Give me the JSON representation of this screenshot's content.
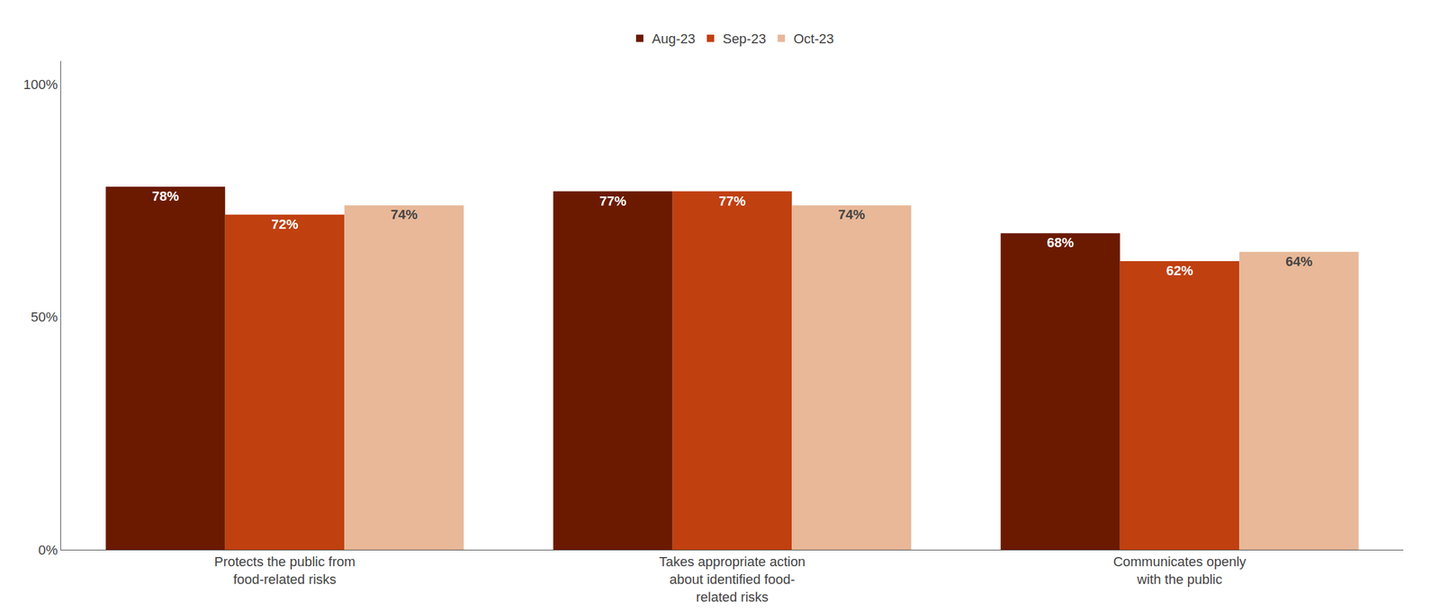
{
  "chart_data": {
    "type": "bar",
    "categories": [
      "Protects the public from\nfood-related risks",
      "Takes appropriate action\nabout identified food-\nrelated risks",
      "Communicates openly\nwith the public"
    ],
    "series": [
      {
        "name": "Aug-23",
        "color": "#6B1A00",
        "values": [
          78,
          77,
          68
        ],
        "value_labels": [
          "78%",
          "77%",
          "68%"
        ]
      },
      {
        "name": "Sep-23",
        "color": "#C04010",
        "values": [
          72,
          77,
          62
        ],
        "value_labels": [
          "72%",
          "77%",
          "62%"
        ]
      },
      {
        "name": "Oct-23",
        "color": "#E8B898",
        "values": [
          74,
          74,
          64
        ],
        "value_labels": [
          "74%",
          "74%",
          "64%"
        ]
      }
    ],
    "ylim": [
      0,
      105
    ],
    "yticks": [
      {
        "value": 0,
        "label": "0%"
      },
      {
        "value": 50,
        "label": "50%"
      },
      {
        "value": 100,
        "label": "100%"
      }
    ],
    "grid": false,
    "legend": "top",
    "data_labels": true
  }
}
